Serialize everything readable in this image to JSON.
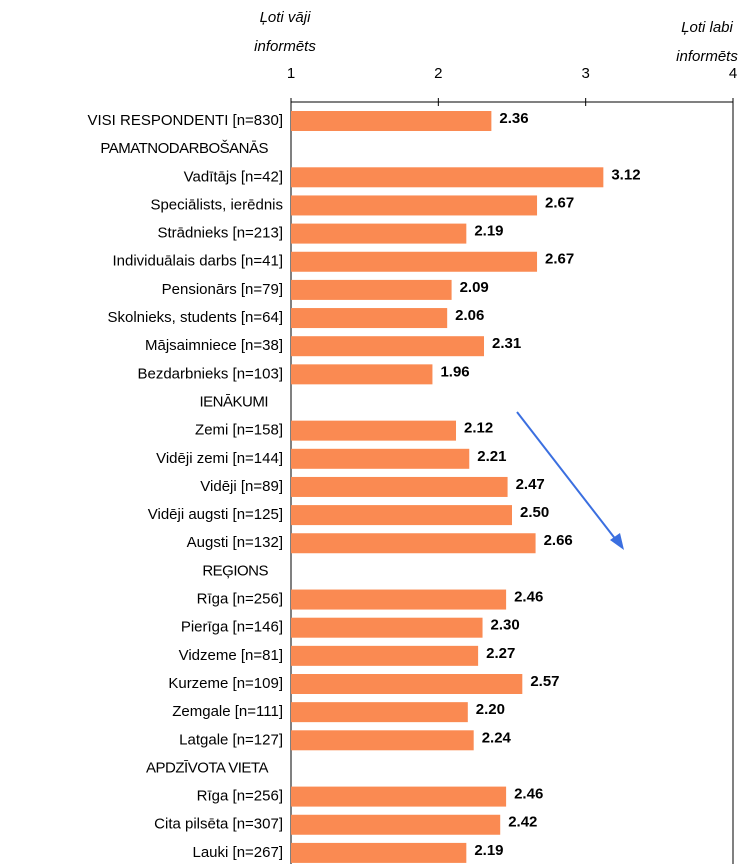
{
  "chart_data": {
    "type": "barh",
    "annotations": [
      {
        "lines": [
          "Ļoti vāji",
          "informēts"
        ]
      },
      {
        "lines": [
          "Ļoti labi",
          "informēts"
        ]
      }
    ],
    "categories": [
      "VISI RESPONDENTI [n=830]",
      "PAMATNODARBOŠANĀS",
      "Vadītājs [n=42]",
      "Speciālists, ierēdnis",
      "Strādnieks [n=213]",
      "Individuālais darbs [n=41]",
      "Pensionārs [n=79]",
      "Skolnieks, students [n=64]",
      "Mājsaimniece [n=38]",
      "Bezdarbnieks [n=103]",
      "IENĀKUMI",
      "Zemi [n=158]",
      "Vidēji zemi [n=144]",
      "Vidēji [n=89]",
      "Vidēji augsti [n=125]",
      "Augsti [n=132]",
      "REĢIONS",
      "Rīga [n=256]",
      "Pierīga [n=146]",
      "Vidzeme [n=81]",
      "Kurzeme [n=109]",
      "Zemgale [n=111]",
      "Latgale [n=127]",
      "APDZĪVOTA VIETA",
      "Rīga [n=256]",
      "Cita pilsēta [n=307]",
      "Lauki [n=267]"
    ],
    "values": [
      2.36,
      null,
      3.12,
      2.67,
      2.19,
      2.67,
      2.09,
      2.06,
      2.31,
      1.96,
      null,
      2.12,
      2.21,
      2.47,
      2.5,
      2.66,
      null,
      2.46,
      2.3,
      2.27,
      2.57,
      2.2,
      2.24,
      null,
      2.46,
      2.42,
      2.19
    ],
    "value_labels": [
      "2.36",
      null,
      "3.12",
      "2.67",
      "2.19",
      "2.67",
      "2.09",
      "2.06",
      "2.31",
      "1.96",
      null,
      "2.12",
      "2.21",
      "2.47",
      "2.50",
      "2.66",
      null,
      "2.46",
      "2.30",
      "2.27",
      "2.57",
      "2.20",
      "2.24",
      null,
      "2.46",
      "2.42",
      "2.19"
    ],
    "color": "#fa8a52",
    "xlim": [
      1,
      4
    ],
    "xticks": [
      1,
      2,
      3,
      4
    ]
  }
}
